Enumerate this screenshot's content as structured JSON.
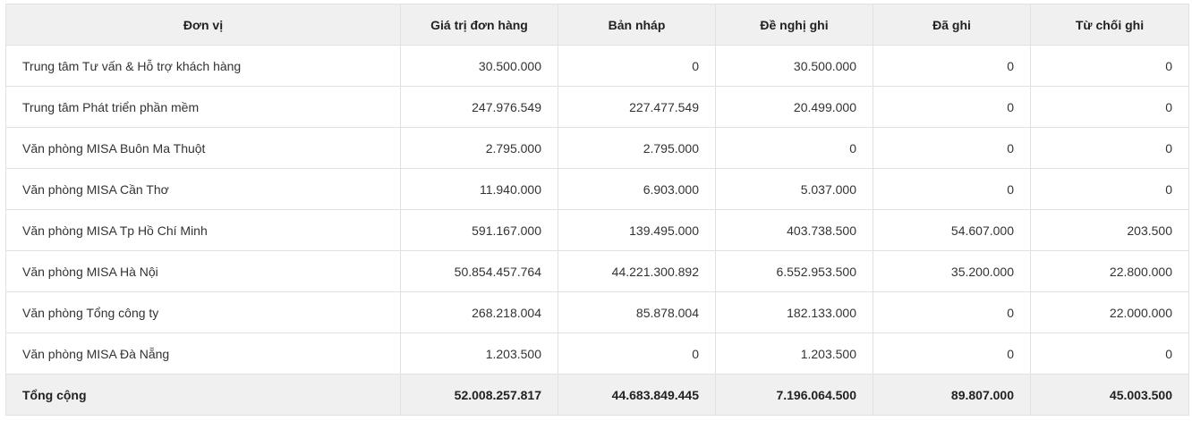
{
  "table": {
    "columns": [
      "Đơn vị",
      "Giá trị đơn hàng",
      "Bản nháp",
      "Đề nghị ghi",
      "Đã ghi",
      "Từ chối ghi"
    ],
    "rows": [
      [
        "Trung tâm Tư vấn & Hỗ trợ khách hàng",
        "30.500.000",
        "0",
        "30.500.000",
        "0",
        "0"
      ],
      [
        "Trung tâm Phát triển phần mềm",
        "247.976.549",
        "227.477.549",
        "20.499.000",
        "0",
        "0"
      ],
      [
        "Văn phòng MISA Buôn Ma Thuột",
        "2.795.000",
        "2.795.000",
        "0",
        "0",
        "0"
      ],
      [
        "Văn phòng MISA Cần Thơ",
        "11.940.000",
        "6.903.000",
        "5.037.000",
        "0",
        "0"
      ],
      [
        "Văn phòng MISA Tp Hồ Chí Minh",
        "591.167.000",
        "139.495.000",
        "403.738.500",
        "54.607.000",
        "203.500"
      ],
      [
        "Văn phòng MISA Hà Nội",
        "50.854.457.764",
        "44.221.300.892",
        "6.552.953.500",
        "35.200.000",
        "22.800.000"
      ],
      [
        "Văn phòng Tổng công ty",
        "268.218.004",
        "85.878.004",
        "182.133.000",
        "0",
        "22.000.000"
      ],
      [
        "Văn phòng MISA Đà Nẵng",
        "1.203.500",
        "0",
        "1.203.500",
        "0",
        "0"
      ]
    ],
    "total": [
      "Tổng cộng",
      "52.008.257.817",
      "44.683.849.445",
      "7.196.064.500",
      "89.807.000",
      "45.003.500"
    ]
  }
}
